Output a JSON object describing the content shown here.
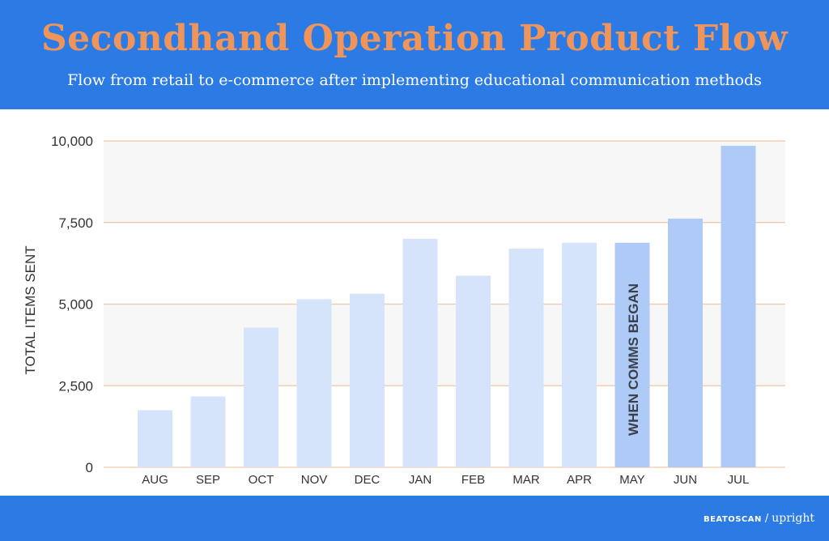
{
  "header": {
    "title": "Secondhand Operation Product Flow",
    "subtitle": "Flow from retail to e-commerce after implementing educational communication methods"
  },
  "footer": {
    "logo_left": "BEATOSCAN",
    "logo_sep": "/",
    "logo_right": "upright"
  },
  "colors": {
    "header_bg": "#2c7be5",
    "title": "#f0955a",
    "bar_light": "#d6e4fb",
    "bar_highlight": "#aecbf7",
    "gridline": "#f2c6a6",
    "band": "#f7f7f7"
  },
  "chart_data": {
    "type": "bar",
    "title": "",
    "xlabel": "",
    "ylabel": "TOTAL ITEMS SENT",
    "ylim": [
      0,
      10000
    ],
    "yticks": [
      0,
      2500,
      5000,
      7500,
      10000
    ],
    "ytick_labels": [
      "0",
      "2,500",
      "5,000",
      "7,500",
      "10,000"
    ],
    "categories": [
      "AUG",
      "SEP",
      "OCT",
      "NOV",
      "DEC",
      "JAN",
      "FEB",
      "MAR",
      "APR",
      "MAY",
      "JUN",
      "JUL"
    ],
    "values": [
      1750,
      2170,
      4280,
      5150,
      5320,
      7000,
      5870,
      6700,
      6880,
      6880,
      7620,
      9850
    ],
    "highlighted_from": "MAY",
    "annotation": {
      "category": "MAY",
      "text": "WHEN COMMS BEGAN"
    },
    "grid": true,
    "legend": "none"
  }
}
